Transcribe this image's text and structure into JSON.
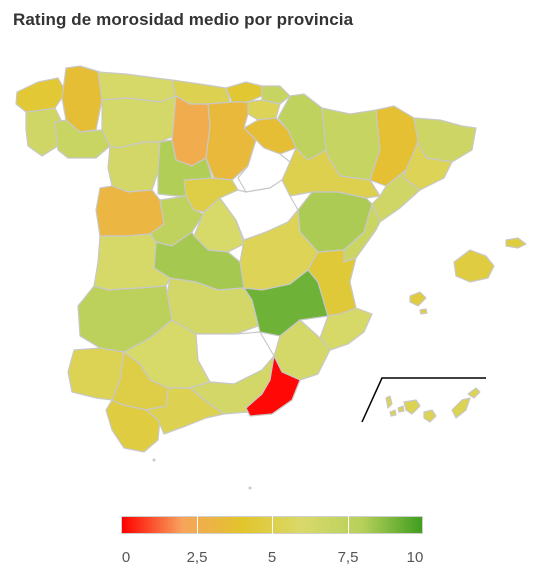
{
  "title": "Rating de morosidad medio por provincia",
  "colors": {
    "scale": [
      "#ff0000",
      "#f7a35c",
      "#e2c52b",
      "#d9d96a",
      "#b7d05a",
      "#3e9e1f"
    ],
    "no_data": "#ffffff",
    "border": "#c8c8c8"
  },
  "legend": {
    "min": 0,
    "max": 10,
    "ticks": [
      {
        "value": 0,
        "label": "0"
      },
      {
        "value": 2.5,
        "label": "2,5"
      },
      {
        "value": 5,
        "label": "5"
      },
      {
        "value": 7.5,
        "label": "7,5"
      },
      {
        "value": 10,
        "label": "10"
      }
    ]
  },
  "provinces": [
    {
      "id": "a-coruna",
      "rating": 4.3
    },
    {
      "id": "lugo",
      "rating": 3.6
    },
    {
      "id": "asturias",
      "rating": 6.2
    },
    {
      "id": "cantabria",
      "rating": 5.2
    },
    {
      "id": "bizkaia",
      "rating": 4.2
    },
    {
      "id": "gipuzkoa",
      "rating": 7.1
    },
    {
      "id": "araba",
      "rating": 5.4
    },
    {
      "id": "navarra",
      "rating": 7.6
    },
    {
      "id": "huesca",
      "rating": 7.1
    },
    {
      "id": "lleida",
      "rating": 3.7
    },
    {
      "id": "girona",
      "rating": 6.7
    },
    {
      "id": "barcelona",
      "rating": 5.4
    },
    {
      "id": "tarragona",
      "rating": 6.6
    },
    {
      "id": "pontevedra",
      "rating": 6.6
    },
    {
      "id": "ourense",
      "rating": 7.0
    },
    {
      "id": "leon",
      "rating": 6.3
    },
    {
      "id": "palencia",
      "rating": 2.6
    },
    {
      "id": "burgos",
      "rating": 3.3
    },
    {
      "id": "la-rioja",
      "rating": 3.6
    },
    {
      "id": "zamora",
      "rating": 6.4
    },
    {
      "id": "valladolid",
      "rating": 8.1
    },
    {
      "id": "soria",
      "rating": null
    },
    {
      "id": "zaragoza",
      "rating": 5.1
    },
    {
      "id": "teruel",
      "rating": 8.2
    },
    {
      "id": "salamanca",
      "rating": 3.1
    },
    {
      "id": "avila",
      "rating": 7.5
    },
    {
      "id": "segovia",
      "rating": 4.9
    },
    {
      "id": "madrid",
      "rating": 6.1
    },
    {
      "id": "guadalajara",
      "rating": null
    },
    {
      "id": "cuenca",
      "rating": 5.4
    },
    {
      "id": "caceres",
      "rating": 6.2
    },
    {
      "id": "toledo",
      "rating": 8.3
    },
    {
      "id": "ciudad-real",
      "rating": 6.4
    },
    {
      "id": "albacete",
      "rating": 9.2
    },
    {
      "id": "castellon",
      "rating": 6.9
    },
    {
      "id": "valencia",
      "rating": 4.4
    },
    {
      "id": "alicante",
      "rating": 6.2
    },
    {
      "id": "badajoz",
      "rating": 7.7
    },
    {
      "id": "cordoba",
      "rating": 6.1
    },
    {
      "id": "jaen",
      "rating": null
    },
    {
      "id": "murcia",
      "rating": 6.3
    },
    {
      "id": "huelva",
      "rating": 5.3
    },
    {
      "id": "sevilla",
      "rating": 4.9
    },
    {
      "id": "granada",
      "rating": 6.4
    },
    {
      "id": "almeria",
      "rating": 0.1
    },
    {
      "id": "cadiz",
      "rating": 4.7
    },
    {
      "id": "malaga",
      "rating": 5.2
    },
    {
      "id": "illes-balears",
      "rating": 4.7
    },
    {
      "id": "canarias",
      "rating": 5.3
    }
  ]
}
